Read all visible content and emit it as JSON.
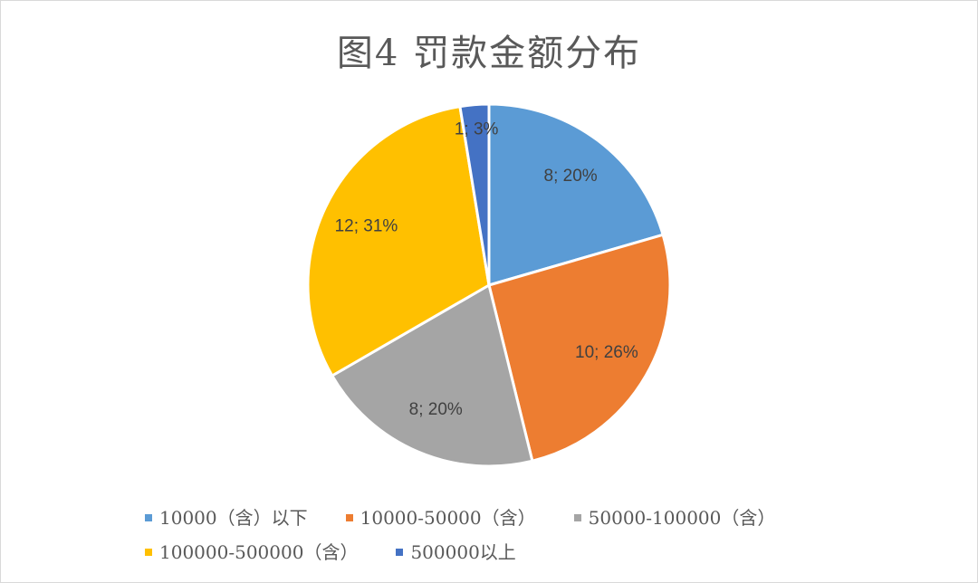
{
  "chart_data": {
    "type": "pie",
    "title": "图4 罚款金额分布",
    "categories": [
      "10000（含）以下",
      "10000-50000（含）",
      "50000-100000（含）",
      "100000-500000（含）",
      "500000以上"
    ],
    "values": [
      8,
      10,
      8,
      12,
      1
    ],
    "percentages": [
      "20%",
      "26%",
      "20%",
      "31%",
      "3%"
    ],
    "data_labels": [
      "8; 20%",
      "10; 26%",
      "8; 20%",
      "12; 31%",
      "1; 3%"
    ],
    "colors": [
      "#5B9BD5",
      "#ED7D31",
      "#A5A5A5",
      "#FFC000",
      "#4472C4"
    ],
    "legend_position": "bottom"
  }
}
